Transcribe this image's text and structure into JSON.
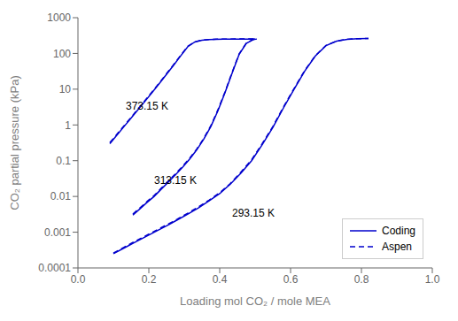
{
  "chart_data": {
    "type": "line",
    "xlabel": "Loading mol CO₂ / mole MEA",
    "ylabel": "CO₂ partial pressure (kPa)",
    "log": "y",
    "xlim": [
      0.0,
      1.0
    ],
    "ylim": [
      0.0001,
      1000
    ],
    "xticks": [
      {
        "value": 0.0,
        "label": "0.0"
      },
      0.2,
      0.4,
      0.6,
      0.8,
      {
        "value": 1.0,
        "label": "1.0"
      }
    ],
    "yticks": [
      0.0001,
      0.001,
      0.01,
      0.1,
      1,
      10,
      100,
      1000
    ],
    "grid": false,
    "legend": "lower right",
    "series": [
      {
        "name": "Coding",
        "color": "#0000cd",
        "line_style": "solid",
        "x": [
          0.09,
          0.11,
          0.13,
          0.15,
          0.17,
          0.19,
          0.21,
          0.23,
          0.25,
          0.27,
          0.29,
          0.31,
          0.33,
          0.35,
          0.37,
          0.39,
          0.41,
          0.43,
          0.45,
          0.47,
          0.5
        ],
        "values": [
          0.3,
          0.52,
          0.9,
          1.55,
          2.7,
          4.7,
          8.2,
          14.5,
          26.0,
          47.0,
          86.0,
          155.0,
          210.0,
          235.0,
          245.0,
          249.0,
          251.0,
          252.0,
          252.5,
          253.0,
          253.0
        ]
      },
      {
        "name": "Aspen",
        "color": "#0000cd",
        "line_style": "dashed",
        "x": [
          0.09,
          0.11,
          0.13,
          0.15,
          0.17,
          0.19,
          0.21,
          0.23,
          0.25,
          0.27,
          0.29,
          0.31,
          0.33,
          0.35,
          0.37,
          0.39,
          0.41,
          0.43,
          0.45,
          0.47,
          0.5
        ],
        "values": [
          0.32,
          0.55,
          0.95,
          1.63,
          2.85,
          4.95,
          8.6,
          15.2,
          27.2,
          49.0,
          89.0,
          158.0,
          212.0,
          236.0,
          246.0,
          250.0,
          252.0,
          253.0,
          253.5,
          254.0,
          254.0
        ]
      },
      {
        "name": "Coding",
        "color": "#0000cd",
        "line_style": "solid",
        "x": [
          0.155,
          0.175,
          0.195,
          0.215,
          0.235,
          0.255,
          0.275,
          0.295,
          0.315,
          0.335,
          0.355,
          0.375,
          0.395,
          0.415,
          0.435,
          0.455,
          0.475,
          0.495,
          0.505
        ],
        "values": [
          0.003,
          0.0045,
          0.0068,
          0.01,
          0.016,
          0.025,
          0.04,
          0.065,
          0.11,
          0.2,
          0.4,
          0.9,
          2.5,
          8.0,
          28.0,
          95.0,
          190.0,
          245.0,
          253.0
        ]
      },
      {
        "name": "Aspen",
        "color": "#0000cd",
        "line_style": "dashed",
        "x": [
          0.155,
          0.175,
          0.195,
          0.215,
          0.235,
          0.255,
          0.275,
          0.295,
          0.315,
          0.335,
          0.355,
          0.375,
          0.395,
          0.415,
          0.435,
          0.455,
          0.475,
          0.495,
          0.505
        ],
        "values": [
          0.0032,
          0.0048,
          0.0072,
          0.0106,
          0.017,
          0.027,
          0.043,
          0.069,
          0.116,
          0.21,
          0.42,
          0.95,
          2.65,
          8.4,
          29.5,
          98.0,
          193.0,
          247.0,
          255.0
        ]
      },
      {
        "name": "Coding",
        "color": "#0000cd",
        "line_style": "solid",
        "x": [
          0.1,
          0.13,
          0.16,
          0.19,
          0.22,
          0.25,
          0.28,
          0.31,
          0.34,
          0.37,
          0.4,
          0.43,
          0.46,
          0.49,
          0.52,
          0.55,
          0.58,
          0.61,
          0.64,
          0.67,
          0.7,
          0.73,
          0.76,
          0.79,
          0.82
        ],
        "values": [
          0.00025,
          0.00036,
          0.00052,
          0.00074,
          0.00106,
          0.0015,
          0.0022,
          0.0032,
          0.0048,
          0.0075,
          0.012,
          0.022,
          0.045,
          0.1,
          0.28,
          0.85,
          3.0,
          10.0,
          32.0,
          85.0,
          165.0,
          220.0,
          248.0,
          258.0,
          262.0
        ]
      },
      {
        "name": "Aspen",
        "color": "#0000cd",
        "line_style": "dashed",
        "x": [
          0.1,
          0.13,
          0.16,
          0.19,
          0.22,
          0.25,
          0.28,
          0.31,
          0.34,
          0.37,
          0.4,
          0.43,
          0.46,
          0.49,
          0.52,
          0.55,
          0.58,
          0.61,
          0.64,
          0.67,
          0.7,
          0.73,
          0.76,
          0.79,
          0.82
        ],
        "values": [
          0.00026,
          0.00038,
          0.00055,
          0.00078,
          0.00112,
          0.0016,
          0.0023,
          0.0034,
          0.0051,
          0.0079,
          0.0127,
          0.023,
          0.048,
          0.106,
          0.3,
          0.9,
          3.2,
          10.5,
          33.5,
          87.0,
          168.0,
          222.0,
          249.5,
          259.0,
          263.0
        ]
      }
    ],
    "annotations": [
      {
        "text": "373.15 K",
        "x": 0.13,
        "y": 3.5
      },
      {
        "text": "313.15 K",
        "x": 0.21,
        "y": 0.028
      },
      {
        "text": "293.15 K",
        "x": 0.43,
        "y": 0.0035
      }
    ]
  }
}
